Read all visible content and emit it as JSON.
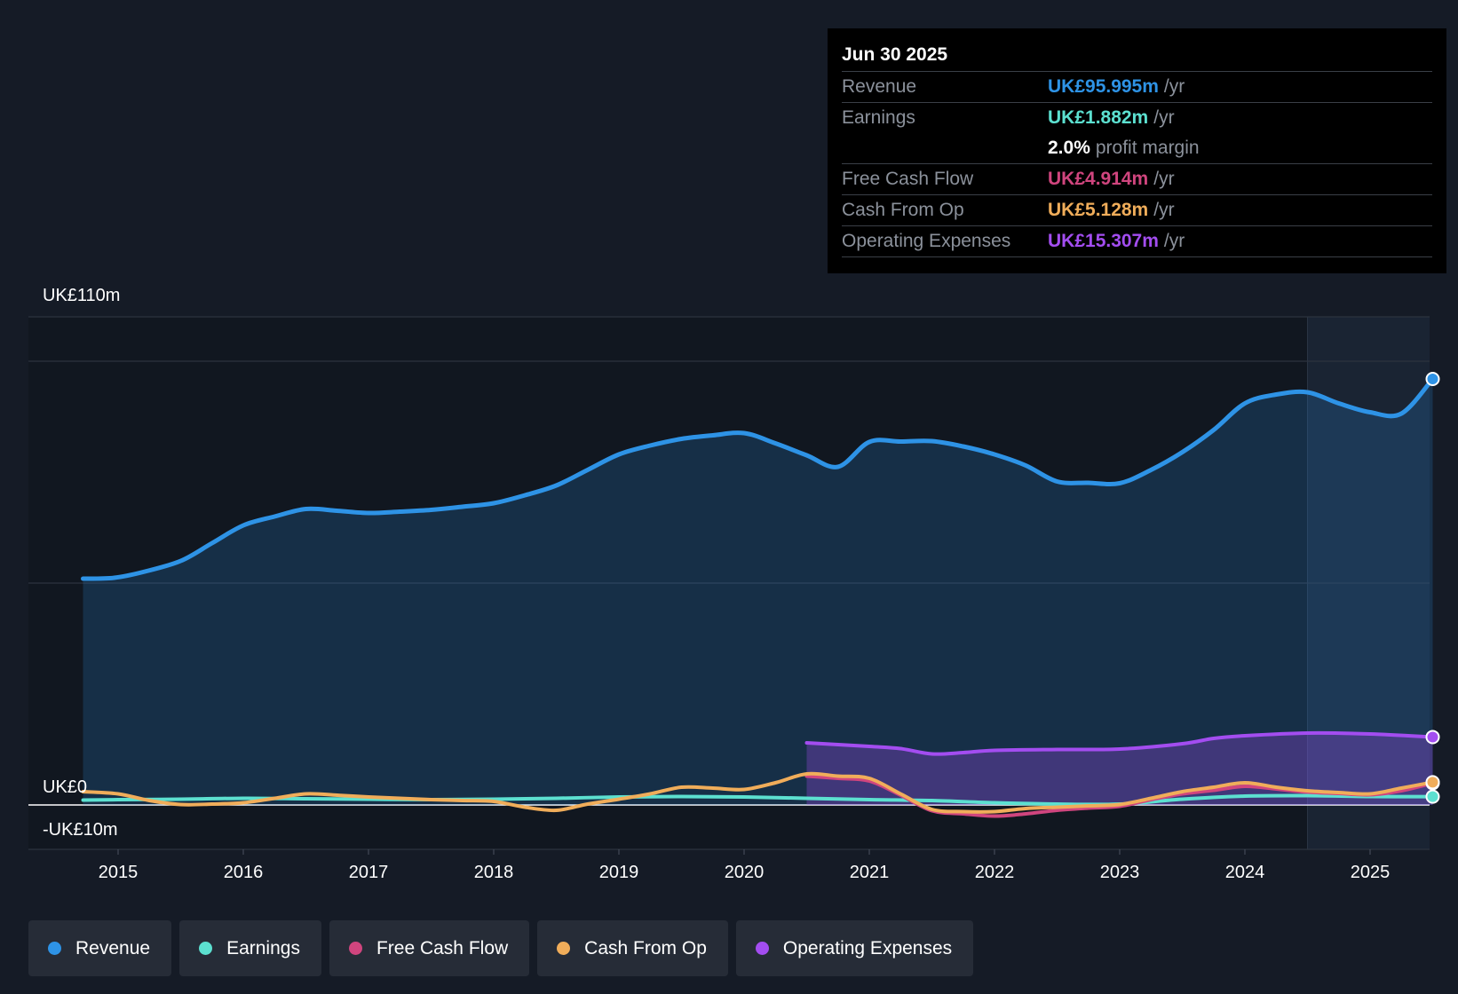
{
  "tooltip": {
    "date": "Jun 30 2025",
    "rows": [
      {
        "label": "Revenue",
        "value": "UK£95.995m",
        "unit": "/yr",
        "color": "#2e93e6"
      },
      {
        "label": "Earnings",
        "value": "UK£1.882m",
        "unit": "/yr",
        "color": "#5ce0d0"
      },
      {
        "label": "",
        "value": "2.0%",
        "unit": "profit margin",
        "color": "#ffffff"
      },
      {
        "label": "Free Cash Flow",
        "value": "UK£4.914m",
        "unit": "/yr",
        "color": "#d0457e"
      },
      {
        "label": "Cash From Op",
        "value": "UK£5.128m",
        "unit": "/yr",
        "color": "#f0ad5a"
      },
      {
        "label": "Operating Expenses",
        "value": "UK£15.307m",
        "unit": "/yr",
        "color": "#a34df0"
      }
    ]
  },
  "legend": [
    {
      "label": "Revenue",
      "color": "#2e93e6"
    },
    {
      "label": "Earnings",
      "color": "#5ce0d0"
    },
    {
      "label": "Free Cash Flow",
      "color": "#d0457e"
    },
    {
      "label": "Cash From Op",
      "color": "#f0ad5a"
    },
    {
      "label": "Operating Expenses",
      "color": "#a34df0"
    }
  ],
  "chart_data": {
    "type": "area",
    "title": "",
    "xlabel": "",
    "ylabel": "",
    "x_ticks": [
      "2015",
      "2016",
      "2017",
      "2018",
      "2019",
      "2020",
      "2021",
      "2022",
      "2023",
      "2024",
      "2025"
    ],
    "y_tick_labels": [
      {
        "value": 110,
        "label": "UK£110m"
      },
      {
        "value": 0,
        "label": "UK£0"
      },
      {
        "value": -10,
        "label": "-UK£10m"
      }
    ],
    "ylim": [
      -10,
      110
    ],
    "xlim": [
      2014.25,
      2025.5
    ],
    "grid": true,
    "highlight_from": 2024.5,
    "series": [
      {
        "name": "Revenue",
        "color": "#2e93e6",
        "fill": true,
        "x": [
          2014.72,
          2014.97,
          2015.2,
          2015.5,
          2015.75,
          2016.0,
          2016.25,
          2016.5,
          2016.75,
          2017.0,
          2017.25,
          2017.5,
          2017.75,
          2018.0,
          2018.25,
          2018.5,
          2018.75,
          2019.0,
          2019.25,
          2019.5,
          2019.75,
          2020.0,
          2020.25,
          2020.5,
          2020.75,
          2021.0,
          2021.25,
          2021.5,
          2021.75,
          2022.0,
          2022.25,
          2022.5,
          2022.75,
          2023.0,
          2023.25,
          2023.5,
          2023.75,
          2024.0,
          2024.25,
          2024.5,
          2024.75,
          2025.0,
          2025.25,
          2025.5
        ],
        "values": [
          51,
          51.2,
          52.5,
          55,
          59,
          63,
          65,
          66.7,
          66.3,
          65.8,
          66.1,
          66.5,
          67.2,
          68,
          69.8,
          72,
          75.5,
          79,
          81,
          82.5,
          83.3,
          83.8,
          81.5,
          78.8,
          76.2,
          81.8,
          81.9,
          82,
          80.8,
          79,
          76.5,
          72.9,
          72.6,
          72.5,
          75.5,
          79.5,
          84.5,
          90.5,
          92.5,
          93,
          90.5,
          88.5,
          88.2,
          96
        ]
      },
      {
        "name": "Earnings",
        "color": "#5ce0d0",
        "fill": false,
        "x": [
          2014.72,
          2015.0,
          2015.5,
          2016.0,
          2016.5,
          2017.0,
          2017.5,
          2018.0,
          2018.5,
          2019.0,
          2019.5,
          2020.0,
          2020.5,
          2021.0,
          2021.5,
          2022.0,
          2022.5,
          2023.0,
          2023.5,
          2024.0,
          2024.5,
          2025.0,
          2025.5
        ],
        "values": [
          1.1,
          1.2,
          1.3,
          1.5,
          1.4,
          1.3,
          1.2,
          1.3,
          1.5,
          1.8,
          1.9,
          1.8,
          1.5,
          1.2,
          1.0,
          0.5,
          0.2,
          0.2,
          1.3,
          2.0,
          2.1,
          1.9,
          1.88
        ]
      },
      {
        "name": "Free Cash Flow",
        "color": "#d0457e",
        "fill": false,
        "x": [
          2020.5,
          2020.75,
          2021.0,
          2021.25,
          2021.5,
          2021.75,
          2022.0,
          2022.25,
          2022.5,
          2022.75,
          2023.0,
          2023.25,
          2023.5,
          2023.75,
          2024.0,
          2024.25,
          2024.5,
          2024.75,
          2025.0,
          2025.25,
          2025.5
        ],
        "values": [
          6.5,
          6.0,
          5.4,
          2.2,
          -1.3,
          -2.0,
          -2.5,
          -2.0,
          -1.2,
          -0.7,
          -0.3,
          1.2,
          2.5,
          3.3,
          4.2,
          3.6,
          2.9,
          2.6,
          2.3,
          3.2,
          4.914
        ]
      },
      {
        "name": "Cash From Op",
        "color": "#f0ad5a",
        "fill": false,
        "x": [
          2014.72,
          2015.0,
          2015.25,
          2015.5,
          2015.75,
          2016.0,
          2016.25,
          2016.5,
          2016.75,
          2017.0,
          2017.25,
          2017.5,
          2017.75,
          2018.0,
          2018.25,
          2018.5,
          2018.75,
          2019.0,
          2019.25,
          2019.5,
          2019.75,
          2020.0,
          2020.25,
          2020.5,
          2020.75,
          2021.0,
          2021.25,
          2021.5,
          2021.75,
          2022.0,
          2022.25,
          2022.5,
          2022.75,
          2023.0,
          2023.25,
          2023.5,
          2023.75,
          2024.0,
          2024.25,
          2024.5,
          2024.75,
          2025.0,
          2025.25,
          2025.5
        ],
        "values": [
          3.0,
          2.5,
          1.0,
          0.1,
          0.2,
          0.5,
          1.5,
          2.5,
          2.2,
          1.8,
          1.5,
          1.2,
          1.0,
          0.8,
          -0.5,
          -1.2,
          0.2,
          1.3,
          2.5,
          4.0,
          3.8,
          3.5,
          5.0,
          7.0,
          6.5,
          6.0,
          2.5,
          -1.0,
          -1.5,
          -1.5,
          -0.8,
          -0.5,
          -0.2,
          0.1,
          1.5,
          3.0,
          4.0,
          5.0,
          4.0,
          3.2,
          2.8,
          2.5,
          3.8,
          5.128
        ]
      },
      {
        "name": "Operating Expenses",
        "color": "#a34df0",
        "fill": true,
        "x": [
          2020.5,
          2021.0,
          2021.25,
          2021.5,
          2021.75,
          2022.0,
          2022.5,
          2023.0,
          2023.5,
          2023.75,
          2024.0,
          2024.5,
          2025.0,
          2025.5
        ],
        "values": [
          14.0,
          13.2,
          12.7,
          11.5,
          11.8,
          12.3,
          12.5,
          12.6,
          13.8,
          15.0,
          15.6,
          16.2,
          16.0,
          15.307
        ]
      }
    ]
  }
}
